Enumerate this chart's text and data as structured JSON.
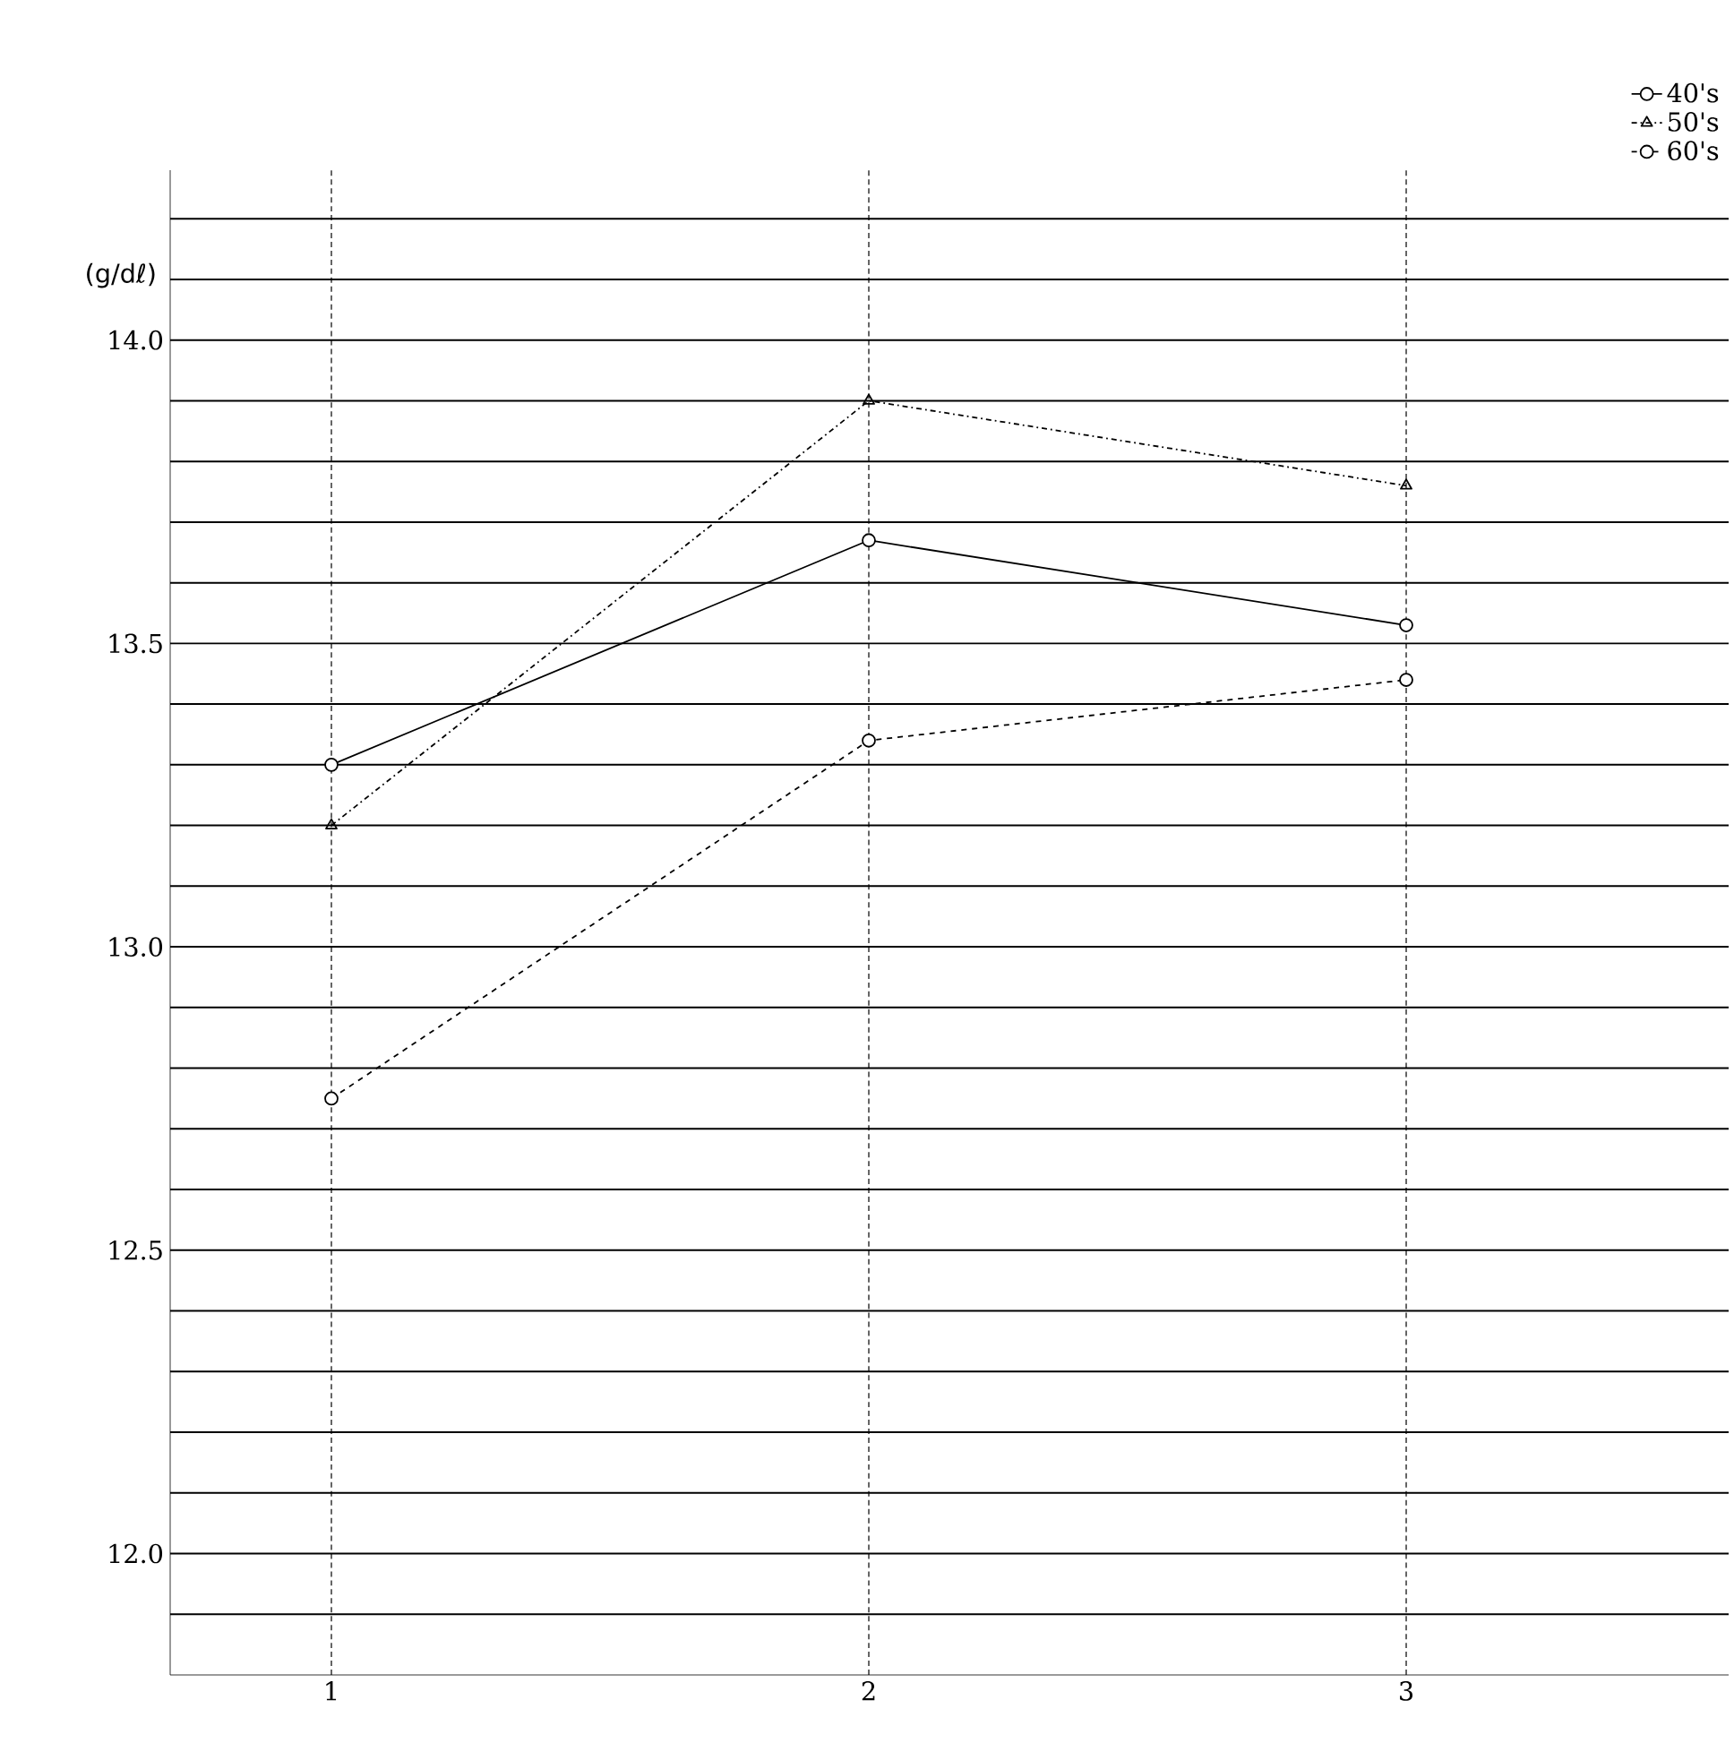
{
  "chart_data": {
    "type": "line",
    "ylabel": "(g/dℓ)",
    "categories": [
      "1",
      "2",
      "3"
    ],
    "series": [
      {
        "name": "40's",
        "color": "#000000",
        "values": [
          13.3,
          13.67,
          13.53
        ],
        "marker": "circle",
        "line_style": "solid"
      },
      {
        "name": "50's",
        "color": "#000000",
        "values": [
          13.2,
          13.9,
          13.76
        ],
        "marker": "triangle",
        "line_style": "dashdot"
      },
      {
        "name": "60's",
        "color": "#000000",
        "values": [
          12.75,
          13.34,
          13.44
        ],
        "marker": "circle",
        "line_style": "dashed"
      }
    ],
    "ylim": [
      11.8,
      14.28
    ],
    "yticks": [
      {
        "value": 11.9,
        "label": null
      },
      {
        "value": 12.0,
        "label": "12.0"
      },
      {
        "value": 12.1,
        "label": null
      },
      {
        "value": 12.2,
        "label": null
      },
      {
        "value": 12.3,
        "label": null
      },
      {
        "value": 12.4,
        "label": null
      },
      {
        "value": 12.5,
        "label": "12.5"
      },
      {
        "value": 12.6,
        "label": null
      },
      {
        "value": 12.7,
        "label": null
      },
      {
        "value": 12.8,
        "label": null
      },
      {
        "value": 12.9,
        "label": null
      },
      {
        "value": 13.0,
        "label": "13.0"
      },
      {
        "value": 13.1,
        "label": null
      },
      {
        "value": 13.2,
        "label": null
      },
      {
        "value": 13.3,
        "label": null
      },
      {
        "value": 13.4,
        "label": null
      },
      {
        "value": 13.5,
        "label": "13.5"
      },
      {
        "value": 13.6,
        "label": null
      },
      {
        "value": 13.7,
        "label": null
      },
      {
        "value": 13.8,
        "label": null
      },
      {
        "value": 13.9,
        "label": null
      },
      {
        "value": 14.0,
        "label": "14.0"
      },
      {
        "value": 14.1,
        "label": null
      },
      {
        "value": 14.2,
        "label": null
      }
    ],
    "grid": true,
    "legend": "top right"
  }
}
